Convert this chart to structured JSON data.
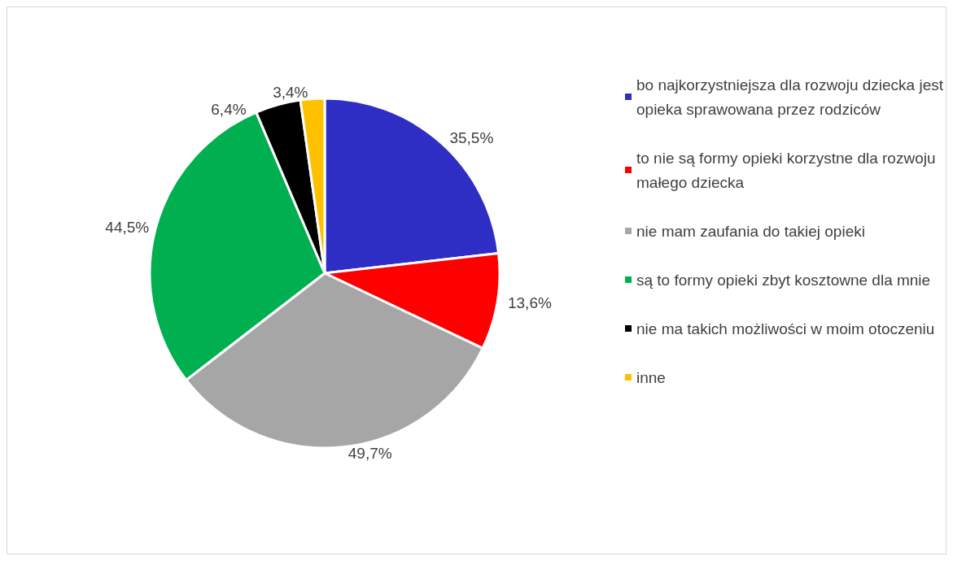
{
  "chart_data": {
    "type": "pie",
    "categories": [
      "bo najkorzystniejsza dla rozwoju dziecka jest opieka sprawowana przez rodziców",
      "to nie są formy opieki korzystne dla rozwoju małego dziecka",
      "nie mam zaufania do takiej opieki",
      "są to formy opieki zbyt kosztowne dla mnie",
      "nie ma takich możliwości w moim otoczeniu",
      "inne"
    ],
    "values": [
      35.5,
      13.6,
      49.7,
      44.5,
      6.4,
      3.4
    ],
    "value_labels": [
      "35,5%",
      "13,6%",
      "49,7%",
      "44,5%",
      "6,4%",
      "3,4%"
    ],
    "colors": [
      "#2e2ec4",
      "#ff0000",
      "#a6a6a6",
      "#00b050",
      "#000000",
      "#ffc000"
    ],
    "legend": "right"
  }
}
